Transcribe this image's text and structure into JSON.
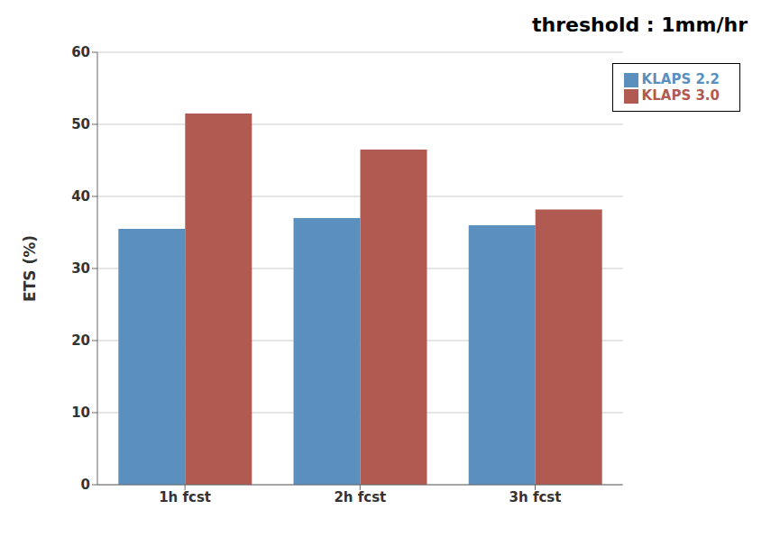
{
  "chart_data": {
    "type": "bar",
    "title": "threshold : 1mm/hr",
    "categories": [
      "1h fcst",
      "2h fcst",
      "3h fcst"
    ],
    "series": [
      {
        "name": "KLAPS 2.2",
        "color": "#5b8fbe",
        "values": [
          35.5,
          37.0,
          36.0
        ]
      },
      {
        "name": "KLAPS 3.0",
        "color": "#b05a52",
        "values": [
          51.5,
          46.5,
          38.2
        ]
      }
    ],
    "ylabel": "ETS (%)",
    "ylim": [
      0,
      60
    ],
    "yticks": [
      0,
      10,
      20,
      30,
      40,
      50,
      60
    ],
    "grid": true,
    "legend": "upper right"
  }
}
